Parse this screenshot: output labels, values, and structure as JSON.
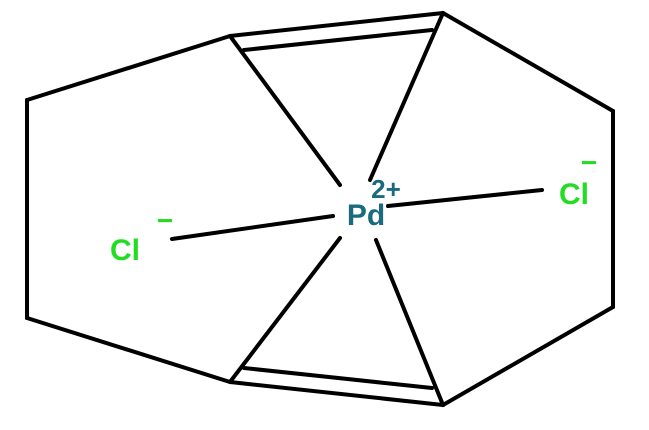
{
  "molecule": {
    "metal": {
      "symbol": "Pd",
      "charge": "2+",
      "color": "#1a6b80"
    },
    "ligands": [
      {
        "symbol": "Cl",
        "charge": "−",
        "color": "#22dd22"
      },
      {
        "symbol": "Cl",
        "charge": "−",
        "color": "#22dd22"
      }
    ],
    "bond_color": "#000000"
  }
}
